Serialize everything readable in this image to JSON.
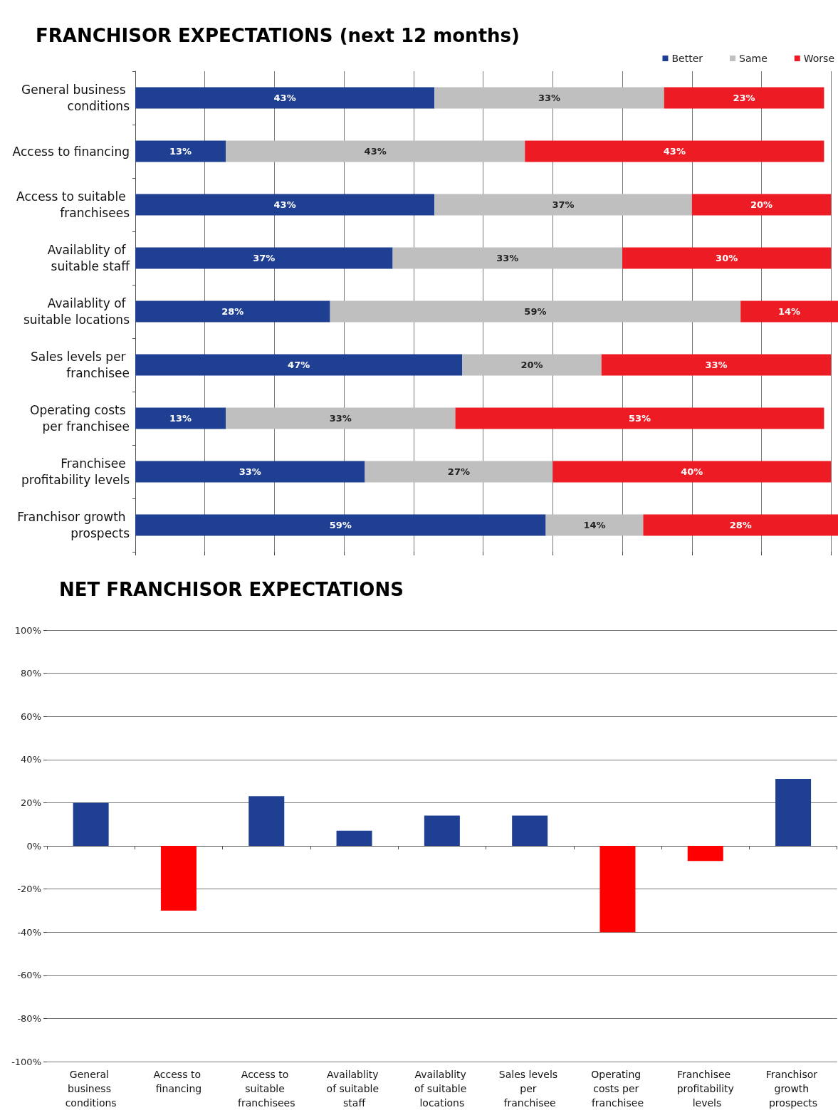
{
  "chart_data": [
    {
      "type": "bar",
      "title": "FRANCHISOR EXPECTATIONS (next 12 months)",
      "orientation": "horizontal",
      "stacked": true,
      "legend": "top right",
      "grid": "x",
      "tick_labels": "y",
      "categories": [
        "General business conditions",
        "Access to financing",
        "Access to suitable franchisees",
        "Availablity of suitable staff",
        "Availablity of suitable locations",
        "Sales levels per franchisee",
        "Operating costs per franchisee",
        "Franchisee profitability levels",
        "Franchisor growth prospects"
      ],
      "xlim": [
        0,
        101
      ],
      "xticks": [
        {
          "value": 0,
          "label": null
        },
        {
          "value": 10,
          "label": null
        },
        {
          "value": 20,
          "label": null
        },
        {
          "value": 30,
          "label": null
        },
        {
          "value": 40,
          "label": null
        },
        {
          "value": 50,
          "label": null
        },
        {
          "value": 60,
          "label": null
        },
        {
          "value": 70,
          "label": null
        },
        {
          "value": 80,
          "label": null
        },
        {
          "value": 90,
          "label": null
        },
        {
          "value": 100,
          "label": null
        }
      ],
      "series": [
        {
          "name": "Better",
          "color": "#1f3f93",
          "values": [
            43,
            13,
            43,
            37,
            28,
            47,
            13,
            33,
            59
          ],
          "value_labels": [
            "43%",
            "13%",
            "43%",
            "37%",
            "28%",
            "47%",
            "13%",
            "33%",
            "59%"
          ]
        },
        {
          "name": "Same",
          "color": "#bfbfbf",
          "values": [
            33,
            43,
            37,
            33,
            59,
            20,
            33,
            27,
            14
          ],
          "value_labels": [
            "33%",
            "43%",
            "37%",
            "33%",
            "59%",
            "20%",
            "33%",
            "27%",
            "14%"
          ]
        },
        {
          "name": "Worse",
          "color": "#ed1c24",
          "values": [
            23,
            43,
            20,
            30,
            14,
            33,
            53,
            40,
            28
          ],
          "value_labels": [
            "23%",
            "43%",
            "20%",
            "30%",
            "14%",
            "33%",
            "53%",
            "40%",
            "28%"
          ]
        }
      ]
    },
    {
      "type": "bar",
      "title": "NET FRANCHISOR EXPECTATIONS",
      "grid": "y",
      "legend": false,
      "categories": [
        "General business conditions",
        "Access to financing",
        "Access to suitable franchisees",
        "Availablity of suitable staff",
        "Availablity of suitable locations",
        "Sales levels per franchisee",
        "Operating costs per franchisee",
        "Franchisee profitability levels",
        "Franchisor growth prospects"
      ],
      "values": [
        20,
        -30,
        23,
        7,
        14,
        14,
        -40,
        -7,
        31
      ],
      "colors": [
        "#1f3f93",
        "#ff0000",
        "#1f3f93",
        "#1f3f93",
        "#1f3f93",
        "#1f3f93",
        "#ff0000",
        "#ff0000",
        "#1f3f93"
      ],
      "ylim": [
        -100,
        100
      ],
      "yticks": [
        {
          "value": -100,
          "label": "-100%"
        },
        {
          "value": -80,
          "label": "-80%"
        },
        {
          "value": -60,
          "label": "-60%"
        },
        {
          "value": -40,
          "label": "-40%"
        },
        {
          "value": -20,
          "label": "-20%"
        },
        {
          "value": 0,
          "label": "0%"
        },
        {
          "value": 20,
          "label": "20%"
        },
        {
          "value": 40,
          "label": "40%"
        },
        {
          "value": 60,
          "label": "60%"
        },
        {
          "value": 80,
          "label": "80%"
        },
        {
          "value": 100,
          "label": "100%"
        }
      ]
    }
  ]
}
